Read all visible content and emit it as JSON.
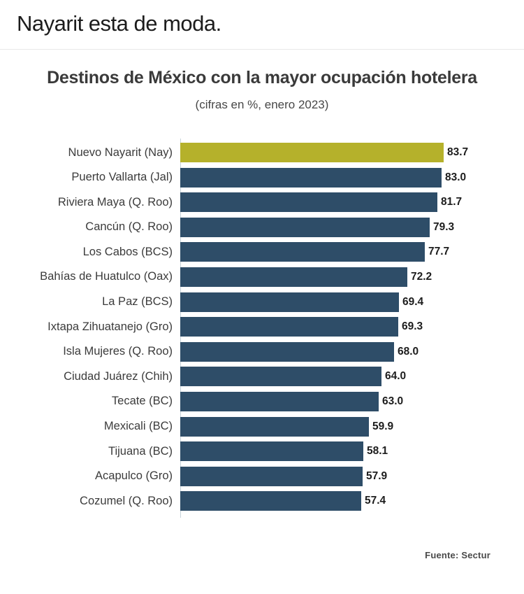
{
  "page": {
    "header_title": "Nayarit esta de moda.",
    "footer_source": "Fuente: Sectur"
  },
  "chart_data": {
    "type": "bar",
    "orientation": "horizontal",
    "title": "Destinos de México con la mayor ocupación hotelera",
    "subtitle": "(cifras en %, enero 2023)",
    "categories": [
      "Nuevo Nayarit (Nay)",
      "Puerto Vallarta (Jal)",
      "Riviera Maya (Q. Roo)",
      "Cancún (Q. Roo)",
      "Los Cabos (BCS)",
      "Bahías de Huatulco (Oax)",
      "La Paz (BCS)",
      "Ixtapa Zihuatanejo (Gro)",
      "Isla Mujeres (Q. Roo)",
      "Ciudad Juárez (Chih)",
      "Tecate (BC)",
      "Mexicali (BC)",
      "Tijuana (BC)",
      "Acapulco (Gro)",
      "Cozumel (Q. Roo)"
    ],
    "values": [
      83.7,
      83.0,
      81.7,
      79.3,
      77.7,
      72.2,
      69.4,
      69.3,
      68.0,
      64.0,
      63.0,
      59.9,
      58.1,
      57.9,
      57.4
    ],
    "value_labels": [
      "83.7",
      "83.0",
      "81.7",
      "79.3",
      "77.7",
      "72.2",
      "69.4",
      "69.3",
      "68.0",
      "64.0",
      "63.0",
      "59.9",
      "58.1",
      "57.9",
      "57.4"
    ],
    "highlight_index": 0,
    "highlight_color": "#b5b12b",
    "bar_color": "#2e4d68",
    "xlim": [
      0,
      90
    ],
    "legend": "none",
    "grid": "off",
    "source": "Fuente: Sectur",
    "unit": "%"
  }
}
